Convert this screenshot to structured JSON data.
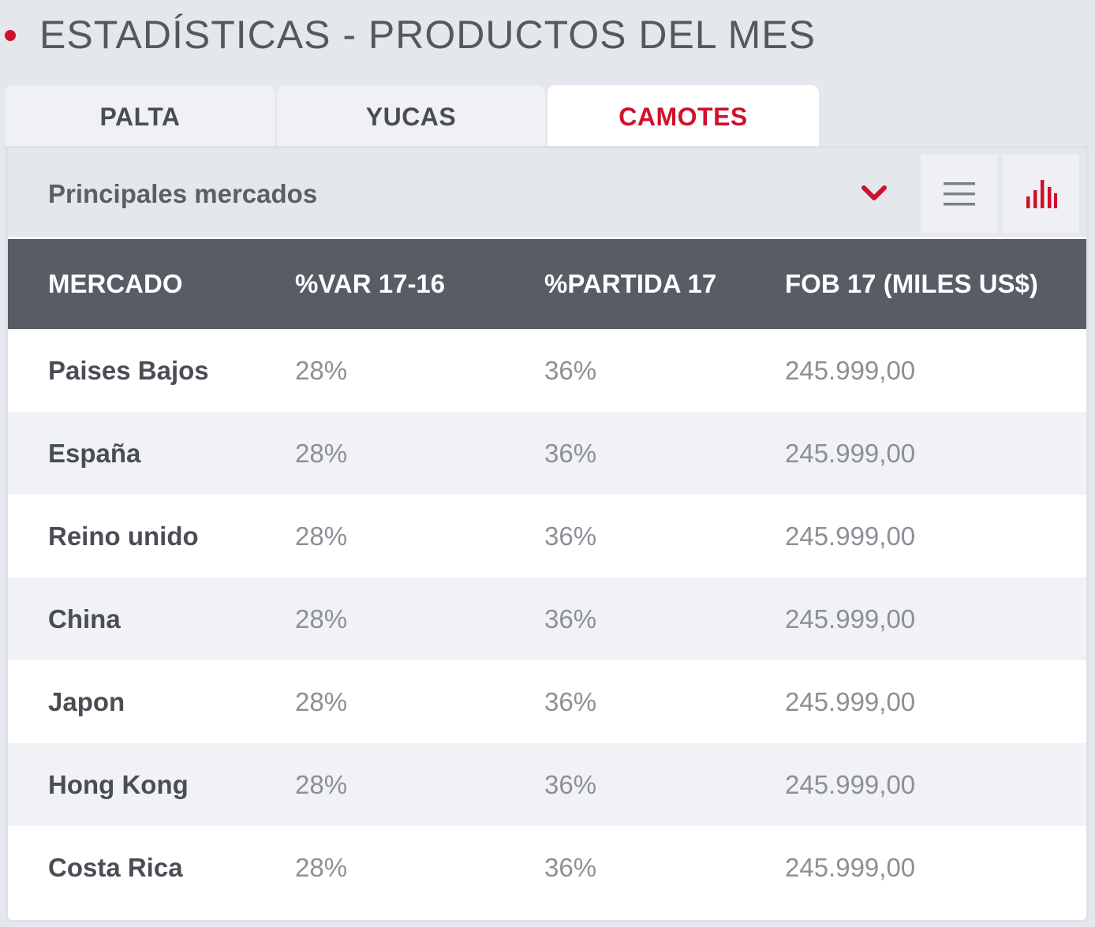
{
  "header": {
    "title": "ESTADÍSTICAS - PRODUCTOS DEL MES",
    "accent_color": "#d0112b"
  },
  "tabs": [
    {
      "label": "PALTA",
      "active": false
    },
    {
      "label": "YUCAS",
      "active": false
    },
    {
      "label": "CAMOTES",
      "active": true
    }
  ],
  "toolbar": {
    "selector_label": "Principales mercados",
    "dropdown_icon": "chevron-down-icon",
    "list_view_icon": "list-icon",
    "chart_view_icon": "bar-chart-icon"
  },
  "table": {
    "columns": [
      "MERCADO",
      "%VAR 17-16",
      "%PARTIDA 17",
      "FOB 17 (MILES US$)"
    ],
    "rows": [
      {
        "market": "Paises Bajos",
        "var": "28%",
        "partida": "36%",
        "fob": "245.999,00"
      },
      {
        "market": "España",
        "var": "28%",
        "partida": "36%",
        "fob": "245.999,00"
      },
      {
        "market": "Reino unido",
        "var": "28%",
        "partida": "36%",
        "fob": "245.999,00"
      },
      {
        "market": "China",
        "var": "28%",
        "partida": "36%",
        "fob": "245.999,00"
      },
      {
        "market": "Japon",
        "var": "28%",
        "partida": "36%",
        "fob": "245.999,00"
      },
      {
        "market": "Hong Kong",
        "var": "28%",
        "partida": "36%",
        "fob": "245.999,00"
      },
      {
        "market": "Costa Rica",
        "var": "28%",
        "partida": "36%",
        "fob": "245.999,00"
      }
    ]
  }
}
